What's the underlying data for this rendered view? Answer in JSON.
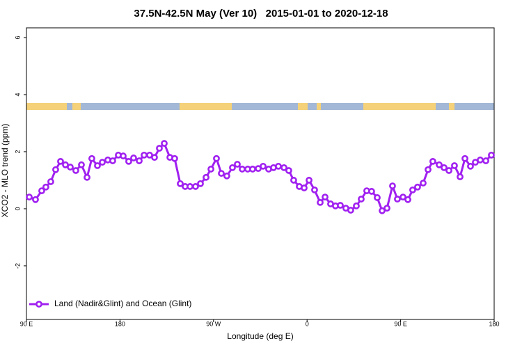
{
  "chart_data": {
    "type": "line",
    "title": "37.5N-42.5N May (Ver 10)   2015-01-01 to 2020-12-18",
    "x_label": "Longitude (deg E)",
    "y_label": "XCO2 - MLO trend (ppm)",
    "xlim": [
      90,
      540
    ],
    "xticks": [
      {
        "value": 90,
        "label": "90 E"
      },
      180,
      {
        "value": 270,
        "label": "90 W"
      },
      {
        "value": 360,
        "label": "0"
      },
      {
        "value": 450,
        "label": "90 E"
      },
      {
        "value": 540,
        "label": "180"
      }
    ],
    "ylim": [
      -3.88,
      6.34
    ],
    "yticks": [
      -2,
      0,
      2,
      4,
      6
    ],
    "legend": "bottom left",
    "x": [
      92.7,
      98.7,
      104.7,
      108.7,
      113.4,
      118.1,
      122.8,
      127.5,
      132.2,
      137.5,
      142.9,
      148.3,
      152.9,
      158.3,
      163.0,
      168.3,
      173.0,
      178.4,
      183.1,
      188.4,
      193.1,
      198.5,
      203.2,
      208.5,
      213.2,
      217.9,
      222.6,
      228.0,
      232.6,
      238.0,
      242.7,
      247.4,
      252.7,
      257.4,
      262.8,
      267.5,
      272.8,
      277.5,
      282.8,
      288.2,
      292.9,
      297.6,
      302.9,
      307.6,
      313.0,
      317.7,
      323.0,
      327.7,
      332.4,
      337.8,
      342.4,
      347.1,
      352.5,
      357.2,
      361.9,
      367.2,
      372.6,
      377.3,
      382.6,
      387.3,
      392.0,
      397.3,
      402.0,
      407.4,
      412.1,
      417.4,
      422.1,
      427.5,
      432.2,
      436.9,
      442.2,
      446.9,
      452.3,
      457.0,
      461.6,
      466.3,
      471.7,
      476.4,
      481.0,
      487.1,
      491.8,
      496.5,
      501.8,
      507.2,
      511.9,
      517.2,
      521.9,
      526.6,
      532.0,
      537.3
    ],
    "series": [
      {
        "name": "Land (Nadir&Glint) and Ocean (Glint)",
        "color": "#a020f0",
        "values": [
          0.41,
          0.32,
          0.63,
          0.76,
          0.95,
          1.37,
          1.66,
          1.54,
          1.46,
          1.34,
          1.54,
          1.1,
          1.76,
          1.51,
          1.63,
          1.71,
          1.68,
          1.88,
          1.85,
          1.66,
          1.78,
          1.68,
          1.88,
          1.88,
          1.8,
          2.12,
          2.29,
          1.8,
          1.76,
          0.88,
          0.78,
          0.78,
          0.78,
          0.88,
          1.1,
          1.39,
          1.76,
          1.24,
          1.15,
          1.44,
          1.56,
          1.39,
          1.39,
          1.39,
          1.41,
          1.49,
          1.39,
          1.44,
          1.49,
          1.44,
          1.34,
          1.0,
          0.78,
          0.73,
          1.0,
          0.66,
          0.22,
          0.41,
          0.17,
          0.1,
          0.12,
          0.02,
          -0.05,
          0.1,
          0.34,
          0.63,
          0.61,
          0.39,
          -0.07,
          0.02,
          0.8,
          0.34,
          0.41,
          0.32,
          0.66,
          0.76,
          0.9,
          1.37,
          1.66,
          1.54,
          1.44,
          1.34,
          1.51,
          1.12,
          1.76,
          1.49,
          1.63,
          1.71,
          1.68,
          1.88
        ]
      }
    ]
  }
}
